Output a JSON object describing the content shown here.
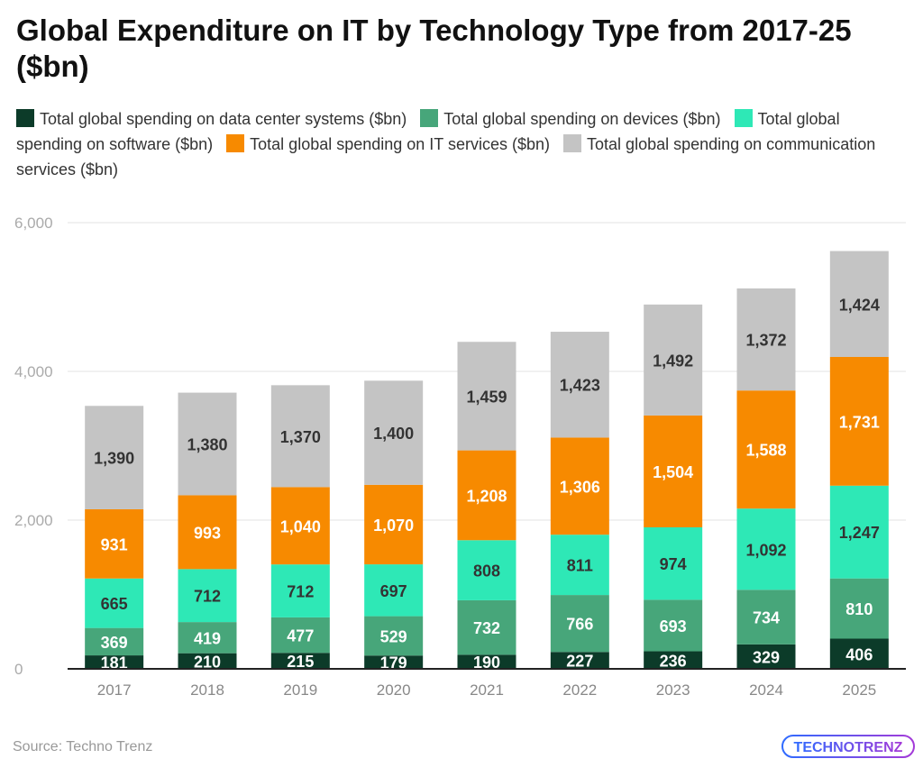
{
  "chart_data": {
    "type": "bar",
    "stacked": true,
    "title": "Global Expenditure on IT by Technology Type from 2017-25 ($bn)",
    "categories": [
      "2017",
      "2018",
      "2019",
      "2020",
      "2021",
      "2022",
      "2023",
      "2024",
      "2025"
    ],
    "series": [
      {
        "name": "Total global spending on data center systems ($bn)",
        "color": "#0c3b29",
        "label_color": "#ffffff",
        "values": [
          181,
          210,
          215,
          179,
          190,
          227,
          236,
          329,
          406
        ]
      },
      {
        "name": "Total global spending on devices ($bn)",
        "color": "#47a67a",
        "label_color": "#ffffff",
        "values": [
          369,
          419,
          477,
          529,
          732,
          766,
          693,
          734,
          810
        ]
      },
      {
        "name": "Total global spending on software ($bn)",
        "color": "#2ee8b6",
        "label_color": "#333333",
        "values": [
          665,
          712,
          712,
          697,
          808,
          811,
          974,
          1092,
          1247
        ]
      },
      {
        "name": "Total global spending on IT services ($bn)",
        "color": "#f78a00",
        "label_color": "#ffffff",
        "values": [
          931,
          993,
          1040,
          1070,
          1208,
          1306,
          1504,
          1588,
          1731
        ]
      },
      {
        "name": "Total global spending on communication services ($bn)",
        "color": "#c4c4c4",
        "label_color": "#333333",
        "values": [
          1390,
          1380,
          1370,
          1400,
          1459,
          1423,
          1492,
          1372,
          1424
        ]
      }
    ],
    "yticks": [
      "0",
      "2,000",
      "4,000",
      "6,000"
    ],
    "ylim": [
      0,
      6000
    ],
    "grid": true,
    "legend": "top"
  },
  "source": "Source: Techno Trenz",
  "logo_text": "TECHNOTRENZ"
}
